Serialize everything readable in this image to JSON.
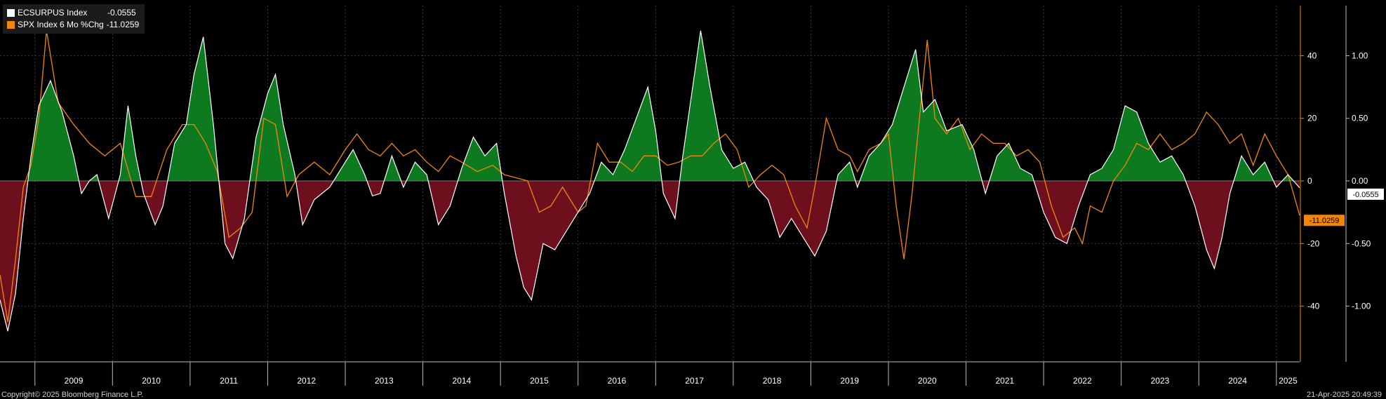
{
  "legend": {
    "series1_name": "ECSURPUS Index",
    "series1_value": "-0.0555",
    "series2_name": "SPX Index 6 Mo %Chg",
    "series2_value": "-11.0259"
  },
  "footer": {
    "copyright": "Copyright© 2025 Bloomberg Finance L.P.",
    "timestamp": "21-Apr-2025 20:49:39"
  },
  "colors": {
    "background": "#000000",
    "positive_fill": "#0d7a1f",
    "negative_fill": "#6e0f1e",
    "surprise_line": "#ffffff",
    "spx_line": "#f0870a",
    "grid": "#3a3a3a"
  },
  "chart_data": {
    "type": "area",
    "x_labels": [
      "2009",
      "2010",
      "2011",
      "2012",
      "2013",
      "2014",
      "2015",
      "2016",
      "2017",
      "2018",
      "2019",
      "2020",
      "2021",
      "2022",
      "2023",
      "2024",
      "2025"
    ],
    "x_range": [
      2008.55,
      2025.3
    ],
    "series": [
      {
        "name": "ECSURPUS Index",
        "axis": "right",
        "points": [
          [
            2008.55,
            -0.95
          ],
          [
            2008.65,
            -1.2
          ],
          [
            2008.75,
            -0.9
          ],
          [
            2008.85,
            -0.3
          ],
          [
            2008.95,
            0.2
          ],
          [
            2009.05,
            0.6
          ],
          [
            2009.2,
            0.8
          ],
          [
            2009.35,
            0.55
          ],
          [
            2009.5,
            0.2
          ],
          [
            2009.6,
            -0.1
          ],
          [
            2009.7,
            0.0
          ],
          [
            2009.8,
            0.05
          ],
          [
            2009.95,
            -0.3
          ],
          [
            2010.1,
            0.05
          ],
          [
            2010.2,
            0.6
          ],
          [
            2010.3,
            0.2
          ],
          [
            2010.4,
            -0.1
          ],
          [
            2010.55,
            -0.35
          ],
          [
            2010.65,
            -0.2
          ],
          [
            2010.8,
            0.3
          ],
          [
            2010.95,
            0.45
          ],
          [
            2011.05,
            0.85
          ],
          [
            2011.17,
            1.15
          ],
          [
            2011.3,
            0.45
          ],
          [
            2011.45,
            -0.5
          ],
          [
            2011.55,
            -0.62
          ],
          [
            2011.7,
            -0.3
          ],
          [
            2011.85,
            0.35
          ],
          [
            2012.0,
            0.7
          ],
          [
            2012.1,
            0.85
          ],
          [
            2012.2,
            0.45
          ],
          [
            2012.35,
            0.05
          ],
          [
            2012.45,
            -0.35
          ],
          [
            2012.6,
            -0.15
          ],
          [
            2012.8,
            -0.05
          ],
          [
            2012.95,
            0.1
          ],
          [
            2013.1,
            0.25
          ],
          [
            2013.25,
            0.05
          ],
          [
            2013.35,
            -0.12
          ],
          [
            2013.45,
            -0.1
          ],
          [
            2013.6,
            0.2
          ],
          [
            2013.75,
            -0.05
          ],
          [
            2013.9,
            0.15
          ],
          [
            2014.05,
            0.05
          ],
          [
            2014.2,
            -0.35
          ],
          [
            2014.35,
            -0.2
          ],
          [
            2014.5,
            0.1
          ],
          [
            2014.65,
            0.35
          ],
          [
            2014.8,
            0.2
          ],
          [
            2014.95,
            0.3
          ],
          [
            2015.05,
            -0.1
          ],
          [
            2015.2,
            -0.6
          ],
          [
            2015.3,
            -0.85
          ],
          [
            2015.4,
            -0.95
          ],
          [
            2015.55,
            -0.5
          ],
          [
            2015.7,
            -0.55
          ],
          [
            2015.85,
            -0.4
          ],
          [
            2016.0,
            -0.25
          ],
          [
            2016.15,
            -0.1
          ],
          [
            2016.3,
            0.15
          ],
          [
            2016.45,
            0.05
          ],
          [
            2016.6,
            0.25
          ],
          [
            2016.75,
            0.5
          ],
          [
            2016.9,
            0.75
          ],
          [
            2017.0,
            0.4
          ],
          [
            2017.1,
            -0.1
          ],
          [
            2017.25,
            -0.3
          ],
          [
            2017.35,
            0.2
          ],
          [
            2017.5,
            0.85
          ],
          [
            2017.58,
            1.2
          ],
          [
            2017.7,
            0.75
          ],
          [
            2017.85,
            0.25
          ],
          [
            2018.0,
            0.1
          ],
          [
            2018.15,
            0.15
          ],
          [
            2018.3,
            -0.05
          ],
          [
            2018.45,
            -0.15
          ],
          [
            2018.6,
            -0.45
          ],
          [
            2018.75,
            -0.3
          ],
          [
            2018.9,
            -0.45
          ],
          [
            2019.05,
            -0.6
          ],
          [
            2019.2,
            -0.4
          ],
          [
            2019.35,
            0.05
          ],
          [
            2019.5,
            0.15
          ],
          [
            2019.6,
            -0.05
          ],
          [
            2019.75,
            0.2
          ],
          [
            2019.9,
            0.3
          ],
          [
            2020.05,
            0.45
          ],
          [
            2020.2,
            0.75
          ],
          [
            2020.35,
            1.05
          ],
          [
            2020.45,
            0.55
          ],
          [
            2020.6,
            0.65
          ],
          [
            2020.75,
            0.4
          ],
          [
            2020.95,
            0.45
          ],
          [
            2021.1,
            0.25
          ],
          [
            2021.25,
            -0.1
          ],
          [
            2021.4,
            0.2
          ],
          [
            2021.55,
            0.3
          ],
          [
            2021.7,
            0.1
          ],
          [
            2021.85,
            0.05
          ],
          [
            2022.0,
            -0.25
          ],
          [
            2022.15,
            -0.45
          ],
          [
            2022.3,
            -0.5
          ],
          [
            2022.45,
            -0.2
          ],
          [
            2022.6,
            0.05
          ],
          [
            2022.75,
            0.1
          ],
          [
            2022.9,
            0.25
          ],
          [
            2023.05,
            0.6
          ],
          [
            2023.2,
            0.55
          ],
          [
            2023.35,
            0.3
          ],
          [
            2023.5,
            0.15
          ],
          [
            2023.65,
            0.2
          ],
          [
            2023.8,
            0.05
          ],
          [
            2023.95,
            -0.2
          ],
          [
            2024.1,
            -0.55
          ],
          [
            2024.2,
            -0.7
          ],
          [
            2024.3,
            -0.45
          ],
          [
            2024.4,
            -0.1
          ],
          [
            2024.55,
            0.2
          ],
          [
            2024.7,
            0.05
          ],
          [
            2024.85,
            0.15
          ],
          [
            2025.0,
            -0.05
          ],
          [
            2025.15,
            0.05
          ],
          [
            2025.3,
            -0.0555
          ]
        ]
      },
      {
        "name": "SPX Index 6 Mo %Chg",
        "axis": "left",
        "points": [
          [
            2008.55,
            -30
          ],
          [
            2008.65,
            -45
          ],
          [
            2008.75,
            -25
          ],
          [
            2008.85,
            -2
          ],
          [
            2008.95,
            5
          ],
          [
            2009.05,
            20
          ],
          [
            2009.15,
            48
          ],
          [
            2009.3,
            25
          ],
          [
            2009.5,
            18
          ],
          [
            2009.7,
            12
          ],
          [
            2009.9,
            8
          ],
          [
            2010.1,
            12
          ],
          [
            2010.3,
            -5
          ],
          [
            2010.5,
            -5
          ],
          [
            2010.7,
            10
          ],
          [
            2010.9,
            18
          ],
          [
            2011.05,
            18
          ],
          [
            2011.2,
            12
          ],
          [
            2011.35,
            3
          ],
          [
            2011.5,
            -18
          ],
          [
            2011.65,
            -15
          ],
          [
            2011.8,
            -10
          ],
          [
            2011.95,
            20
          ],
          [
            2012.1,
            18
          ],
          [
            2012.25,
            -5
          ],
          [
            2012.4,
            2
          ],
          [
            2012.6,
            6
          ],
          [
            2012.8,
            2
          ],
          [
            2013.0,
            10
          ],
          [
            2013.15,
            15
          ],
          [
            2013.3,
            10
          ],
          [
            2013.45,
            8
          ],
          [
            2013.6,
            12
          ],
          [
            2013.75,
            8
          ],
          [
            2013.9,
            10
          ],
          [
            2014.05,
            6
          ],
          [
            2014.2,
            3
          ],
          [
            2014.35,
            8
          ],
          [
            2014.5,
            6
          ],
          [
            2014.7,
            3
          ],
          [
            2014.9,
            5
          ],
          [
            2015.05,
            2
          ],
          [
            2015.2,
            1
          ],
          [
            2015.35,
            0
          ],
          [
            2015.5,
            -10
          ],
          [
            2015.65,
            -8
          ],
          [
            2015.8,
            -2
          ],
          [
            2016.0,
            -10
          ],
          [
            2016.1,
            -8
          ],
          [
            2016.25,
            12
          ],
          [
            2016.4,
            6
          ],
          [
            2016.55,
            6
          ],
          [
            2016.7,
            3
          ],
          [
            2016.85,
            8
          ],
          [
            2017.0,
            8
          ],
          [
            2017.15,
            5
          ],
          [
            2017.3,
            6
          ],
          [
            2017.45,
            8
          ],
          [
            2017.6,
            8
          ],
          [
            2017.75,
            12
          ],
          [
            2017.9,
            15
          ],
          [
            2018.05,
            10
          ],
          [
            2018.2,
            -2
          ],
          [
            2018.35,
            2
          ],
          [
            2018.5,
            5
          ],
          [
            2018.65,
            2
          ],
          [
            2018.8,
            -8
          ],
          [
            2018.95,
            -15
          ],
          [
            2019.05,
            -2
          ],
          [
            2019.2,
            20
          ],
          [
            2019.35,
            10
          ],
          [
            2019.5,
            8
          ],
          [
            2019.6,
            3
          ],
          [
            2019.75,
            10
          ],
          [
            2019.9,
            12
          ],
          [
            2020.0,
            15
          ],
          [
            2020.1,
            -8
          ],
          [
            2020.2,
            -25
          ],
          [
            2020.3,
            -5
          ],
          [
            2020.4,
            20
          ],
          [
            2020.5,
            45
          ],
          [
            2020.6,
            20
          ],
          [
            2020.75,
            15
          ],
          [
            2020.9,
            20
          ],
          [
            2021.05,
            10
          ],
          [
            2021.2,
            15
          ],
          [
            2021.35,
            12
          ],
          [
            2021.5,
            12
          ],
          [
            2021.65,
            8
          ],
          [
            2021.8,
            10
          ],
          [
            2021.95,
            6
          ],
          [
            2022.1,
            -8
          ],
          [
            2022.25,
            -18
          ],
          [
            2022.4,
            -15
          ],
          [
            2022.5,
            -20
          ],
          [
            2022.6,
            -8
          ],
          [
            2022.75,
            -10
          ],
          [
            2022.9,
            0
          ],
          [
            2023.05,
            5
          ],
          [
            2023.2,
            12
          ],
          [
            2023.35,
            10
          ],
          [
            2023.5,
            15
          ],
          [
            2023.65,
            10
          ],
          [
            2023.8,
            12
          ],
          [
            2023.95,
            15
          ],
          [
            2024.1,
            22
          ],
          [
            2024.25,
            18
          ],
          [
            2024.4,
            12
          ],
          [
            2024.55,
            15
          ],
          [
            2024.7,
            5
          ],
          [
            2024.85,
            15
          ],
          [
            2025.0,
            8
          ],
          [
            2025.15,
            2
          ],
          [
            2025.3,
            -11.0259
          ]
        ]
      }
    ],
    "left_axis": {
      "ticks": [
        -40,
        -20,
        0,
        20,
        40
      ],
      "range": [
        -56,
        56
      ]
    },
    "right_axis": {
      "ticks": [
        -1.0,
        -0.5,
        0.0,
        0.5,
        1.0
      ],
      "tick_labels": [
        "-1.00",
        "-0.50",
        "0.00",
        "0.50",
        "1.00"
      ],
      "range": [
        -1.4,
        1.4
      ]
    },
    "last_value_tags": [
      {
        "series": "ECSURPUS Index",
        "value": -0.0555,
        "label": "-0.0555"
      },
      {
        "series": "SPX Index 6 Mo %Chg",
        "value": -11.0259,
        "label": "-11.0259"
      }
    ],
    "grid": true,
    "legend_position": "top-left"
  }
}
